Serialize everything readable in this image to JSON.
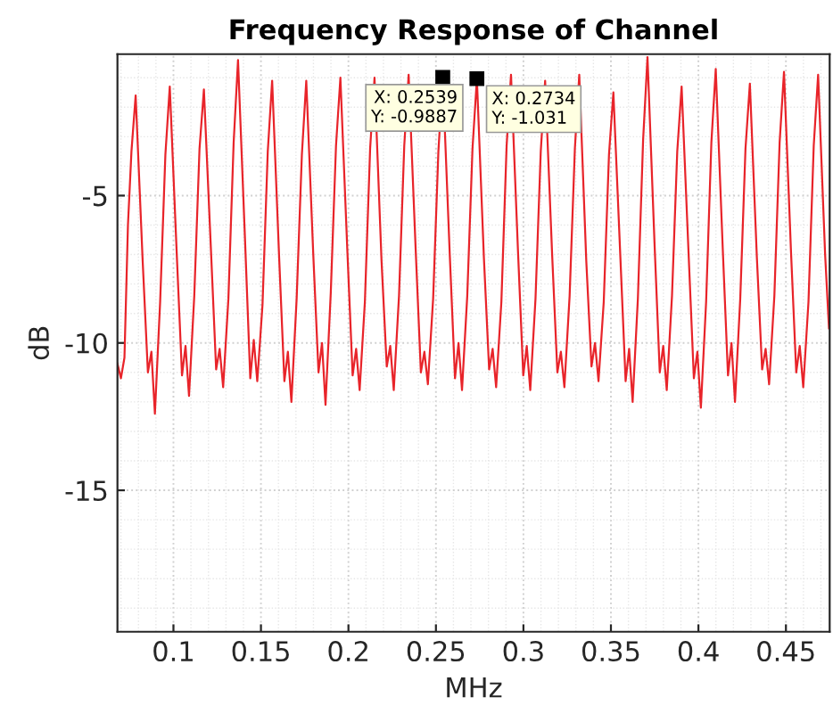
{
  "chart_data": {
    "type": "line",
    "title": "Frequency Response of Channel",
    "xlabel": "MHz",
    "ylabel": "dB",
    "xlim": [
      0.068,
      0.475
    ],
    "ylim": [
      -19.8,
      -0.2
    ],
    "xticks": [
      0.1,
      0.15,
      0.2,
      0.25,
      0.3,
      0.35,
      0.4,
      0.45
    ],
    "yticks": [
      -15,
      -10,
      -5
    ],
    "grid": true,
    "marker": "none",
    "line_style": "solid",
    "series": [
      {
        "color": "#e8242a",
        "x": [
          0.068,
          0.07,
          0.072,
          0.074,
          0.076,
          0.0784,
          0.0824,
          0.0854,
          0.0874,
          0.0894,
          0.0924,
          0.0954,
          0.0979,
          0.1019,
          0.1049,
          0.1069,
          0.1089,
          0.1119,
          0.1149,
          0.1174,
          0.1214,
          0.1244,
          0.1264,
          0.1284,
          0.1314,
          0.1344,
          0.1369,
          0.1409,
          0.1439,
          0.1459,
          0.1479,
          0.1509,
          0.1539,
          0.1564,
          0.1604,
          0.1634,
          0.1654,
          0.1674,
          0.1704,
          0.1734,
          0.1759,
          0.1799,
          0.1829,
          0.1849,
          0.1869,
          0.1899,
          0.1929,
          0.1954,
          0.1994,
          0.2024,
          0.2044,
          0.2064,
          0.2094,
          0.2124,
          0.2149,
          0.2189,
          0.2219,
          0.2239,
          0.2259,
          0.2289,
          0.2319,
          0.2344,
          0.2384,
          0.2414,
          0.2434,
          0.2454,
          0.2484,
          0.2514,
          0.2539,
          0.2579,
          0.2609,
          0.2629,
          0.2649,
          0.2679,
          0.2709,
          0.2734,
          0.2774,
          0.2804,
          0.2824,
          0.2844,
          0.2874,
          0.2904,
          0.2929,
          0.2969,
          0.2999,
          0.3019,
          0.3039,
          0.3069,
          0.3099,
          0.3124,
          0.3164,
          0.3194,
          0.3214,
          0.3234,
          0.3264,
          0.3294,
          0.3319,
          0.3359,
          0.3389,
          0.3409,
          0.3429,
          0.3459,
          0.3489,
          0.3514,
          0.3554,
          0.3584,
          0.3604,
          0.3624,
          0.3654,
          0.3684,
          0.3709,
          0.3749,
          0.3779,
          0.3799,
          0.3819,
          0.3849,
          0.3879,
          0.3904,
          0.3944,
          0.3974,
          0.3994,
          0.4014,
          0.4044,
          0.4074,
          0.4099,
          0.4139,
          0.4169,
          0.4189,
          0.4209,
          0.4239,
          0.4269,
          0.4294,
          0.4334,
          0.4364,
          0.4384,
          0.4404,
          0.4434,
          0.4464,
          0.4489,
          0.4529,
          0.4559,
          0.4579,
          0.4599,
          0.4629,
          0.4659,
          0.4684,
          0.4724,
          0.4746
        ],
        "values": [
          -10.7,
          -11.2,
          -10.5,
          -6,
          -3.5,
          -1.6,
          -7.2,
          -11.0,
          -10.3,
          -12.4,
          -8.6,
          -3.6,
          -1.3,
          -7.0,
          -11.1,
          -10.1,
          -11.8,
          -8.4,
          -3.4,
          -1.4,
          -6.8,
          -10.9,
          -10.2,
          -11.5,
          -8.5,
          -3.2,
          -0.4,
          -6.5,
          -11.2,
          -9.9,
          -11.3,
          -8.7,
          -3.5,
          -1.1,
          -7.1,
          -11.3,
          -10.3,
          -12.0,
          -8.5,
          -3.6,
          -1.1,
          -7.0,
          -11.0,
          -10.0,
          -12.1,
          -8.3,
          -3.3,
          -1.0,
          -6.9,
          -11.1,
          -10.2,
          -11.6,
          -8.6,
          -3.4,
          -1.0,
          -7.2,
          -10.8,
          -10.1,
          -11.6,
          -8.4,
          -3.3,
          -0.9,
          -6.8,
          -11.0,
          -10.3,
          -11.4,
          -8.5,
          -3.5,
          -0.9887,
          -7.0,
          -11.2,
          -10.0,
          -11.6,
          -8.4,
          -3.4,
          -1.031,
          -7.1,
          -10.9,
          -10.2,
          -11.5,
          -8.6,
          -3.3,
          -0.9,
          -6.9,
          -11.1,
          -10.1,
          -11.6,
          -8.5,
          -3.5,
          -1.1,
          -7.0,
          -11.0,
          -10.3,
          -11.5,
          -8.4,
          -3.4,
          -0.9,
          -7.2,
          -10.8,
          -10.0,
          -11.3,
          -8.6,
          -3.6,
          -1.5,
          -7.1,
          -11.3,
          -10.2,
          -12.0,
          -8.5,
          -3.1,
          -0.3,
          -6.6,
          -11.0,
          -10.1,
          -11.6,
          -8.4,
          -3.5,
          -1.3,
          -7.0,
          -11.2,
          -10.3,
          -12.2,
          -8.6,
          -3.2,
          -0.7,
          -6.8,
          -11.1,
          -10.0,
          -12.0,
          -8.5,
          -3.4,
          -1.2,
          -7.1,
          -10.9,
          -10.2,
          -11.4,
          -8.4,
          -3.2,
          -0.8,
          -6.9,
          -11.0,
          -10.1,
          -11.5,
          -8.6,
          -3.3,
          -0.9,
          -7.0,
          -9.5
        ]
      }
    ],
    "annotations": [
      {
        "text": "X: 0.2539\nY: -0.9887",
        "x": 0.2539,
        "y": -0.9887
      },
      {
        "text": "X: 0.2734\nY: -1.031",
        "x": 0.2734,
        "y": -1.031
      }
    ]
  }
}
